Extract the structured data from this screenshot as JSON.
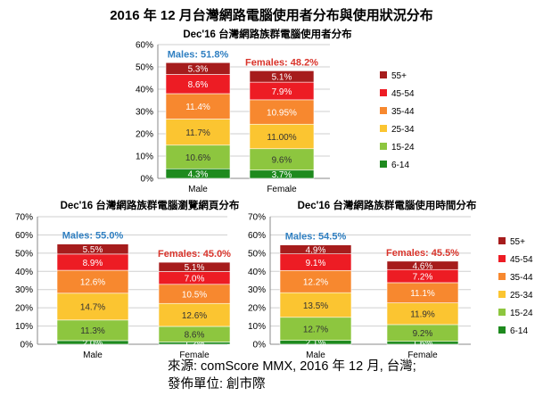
{
  "title": "2016 年 12 月台灣網路電腦使用者分布與使用狀況分布",
  "source_line1": "來源: comScore MMX, 2016 年 12 月, 台灣;",
  "source_line2": "發佈單位: 創市際",
  "colors": {
    "6-14": "#1e8a1e",
    "15-24": "#8dc63f",
    "25-34": "#fbc531",
    "35-44": "#f7882f",
    "45-54": "#ed1c24",
    "55+": "#a61c1c",
    "males_label": "#2f7fc1",
    "females_label": "#d9342b"
  },
  "chart_data": [
    {
      "type": "bar",
      "stacked": true,
      "title": "Dec'16 台灣網路族群電腦使用者分布",
      "categories": [
        "Male",
        "Female"
      ],
      "ylim": [
        0,
        60
      ],
      "yticks": [
        "0%",
        "10%",
        "20%",
        "30%",
        "40%",
        "50%",
        "60%"
      ],
      "group_labels": [
        "Males: 51.8%",
        "Females: 48.2%"
      ],
      "legend": "right",
      "series": [
        {
          "name": "6-14",
          "values": [
            4.3,
            3.7
          ],
          "labels": [
            "4.3%",
            "3.7%"
          ]
        },
        {
          "name": "15-24",
          "values": [
            10.6,
            9.6
          ],
          "labels": [
            "10.6%",
            "9.6%"
          ]
        },
        {
          "name": "25-34",
          "values": [
            11.7,
            11.0
          ],
          "labels": [
            "11.7%",
            "11.00%"
          ]
        },
        {
          "name": "35-44",
          "values": [
            11.4,
            10.95
          ],
          "labels": [
            "11.4%",
            "10.95%"
          ]
        },
        {
          "name": "45-54",
          "values": [
            8.6,
            7.9
          ],
          "labels": [
            "8.6%",
            "7.9%"
          ]
        },
        {
          "name": "55+",
          "values": [
            5.3,
            5.1
          ],
          "labels": [
            "5.3%",
            "5.1%"
          ]
        }
      ]
    },
    {
      "type": "bar",
      "stacked": true,
      "title": "Dec'16 台灣網路族群電腦瀏覽網頁分布",
      "categories": [
        "Male",
        "Female"
      ],
      "ylim": [
        0,
        70
      ],
      "yticks": [
        "0%",
        "10%",
        "20%",
        "30%",
        "40%",
        "50%",
        "60%",
        "70%"
      ],
      "group_labels": [
        "Males: 55.0%",
        "Females: 45.0%"
      ],
      "legend": "none",
      "series": [
        {
          "name": "6-14",
          "values": [
            2.0,
            1.2
          ],
          "labels": [
            "2.0%",
            "1.2%"
          ]
        },
        {
          "name": "15-24",
          "values": [
            11.3,
            8.6
          ],
          "labels": [
            "11.3%",
            "8.6%"
          ]
        },
        {
          "name": "25-34",
          "values": [
            14.7,
            12.6
          ],
          "labels": [
            "14.7%",
            "12.6%"
          ]
        },
        {
          "name": "35-44",
          "values": [
            12.6,
            10.5
          ],
          "labels": [
            "12.6%",
            "10.5%"
          ]
        },
        {
          "name": "45-54",
          "values": [
            8.9,
            7.0
          ],
          "labels": [
            "8.9%",
            "7.0%"
          ]
        },
        {
          "name": "55+",
          "values": [
            5.5,
            5.1
          ],
          "labels": [
            "5.5%",
            "5.1%"
          ]
        }
      ]
    },
    {
      "type": "bar",
      "stacked": true,
      "title": "Dec'16 台灣網路族群電腦使用時間分布",
      "categories": [
        "Male",
        "Female"
      ],
      "ylim": [
        0,
        70
      ],
      "yticks": [
        "0%",
        "10%",
        "20%",
        "30%",
        "40%",
        "50%",
        "60%",
        "70%"
      ],
      "group_labels": [
        "Males: 54.5%",
        "Females: 45.5%"
      ],
      "legend": "right",
      "series": [
        {
          "name": "6-14",
          "values": [
            2.1,
            1.6
          ],
          "labels": [
            "2.1%",
            "1.6%"
          ]
        },
        {
          "name": "15-24",
          "values": [
            12.7,
            9.2
          ],
          "labels": [
            "12.7%",
            "9.2%"
          ]
        },
        {
          "name": "25-34",
          "values": [
            13.5,
            11.9
          ],
          "labels": [
            "13.5%",
            "11.9%"
          ]
        },
        {
          "name": "35-44",
          "values": [
            12.2,
            11.1
          ],
          "labels": [
            "12.2%",
            "11.1%"
          ]
        },
        {
          "name": "45-54",
          "values": [
            9.1,
            7.2
          ],
          "labels": [
            "9.1%",
            "7.2%"
          ]
        },
        {
          "name": "55+",
          "values": [
            4.9,
            4.6
          ],
          "labels": [
            "4.9%",
            "4.6%"
          ]
        }
      ]
    }
  ]
}
